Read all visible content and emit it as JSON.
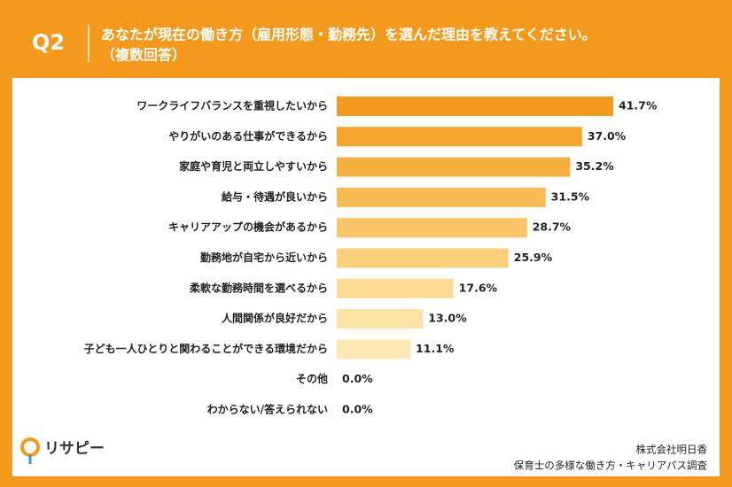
{
  "chart_data": {
    "type": "bar",
    "orientation": "horizontal",
    "question_number": "Q2",
    "title": "あなたが現在の働き方（雇用形態・勤務先）を選んだ理由を教えてください。",
    "subtitle": "（複数回答）",
    "categories": [
      "ワークライフバランスを重視したいから",
      "やりがいのある仕事ができるから",
      "家庭や育児と両立しやすいから",
      "給与・待遇が良いから",
      "キャリアアップの機会があるから",
      "勤務地が自宅から近いから",
      "柔軟な勤務時間を選べるから",
      "人間関係が良好だから",
      "子ども一人ひとりと関わることができる環境だから",
      "その他",
      "わからない/答えられない"
    ],
    "values": [
      41.7,
      37.0,
      35.2,
      31.5,
      28.7,
      25.9,
      17.6,
      13.0,
      11.1,
      0.0,
      0.0
    ],
    "value_labels": [
      "41.7%",
      "37.0%",
      "35.2%",
      "31.5%",
      "28.7%",
      "25.9%",
      "17.6%",
      "13.0%",
      "11.1%",
      "0.0%",
      "0.0%"
    ],
    "colors": [
      "#f39a1c",
      "#f5a52c",
      "#f6b03f",
      "#f8bb52",
      "#f9c566",
      "#fbd07b",
      "#fcdb92",
      "#fde3a6",
      "#fde8b3",
      "#fdebbb",
      "#fdedc0"
    ]
  },
  "logo": "リサピー",
  "source_company": "株式会社明日香",
  "source": "保育士の多様な働き方・キャリアパス調査"
}
